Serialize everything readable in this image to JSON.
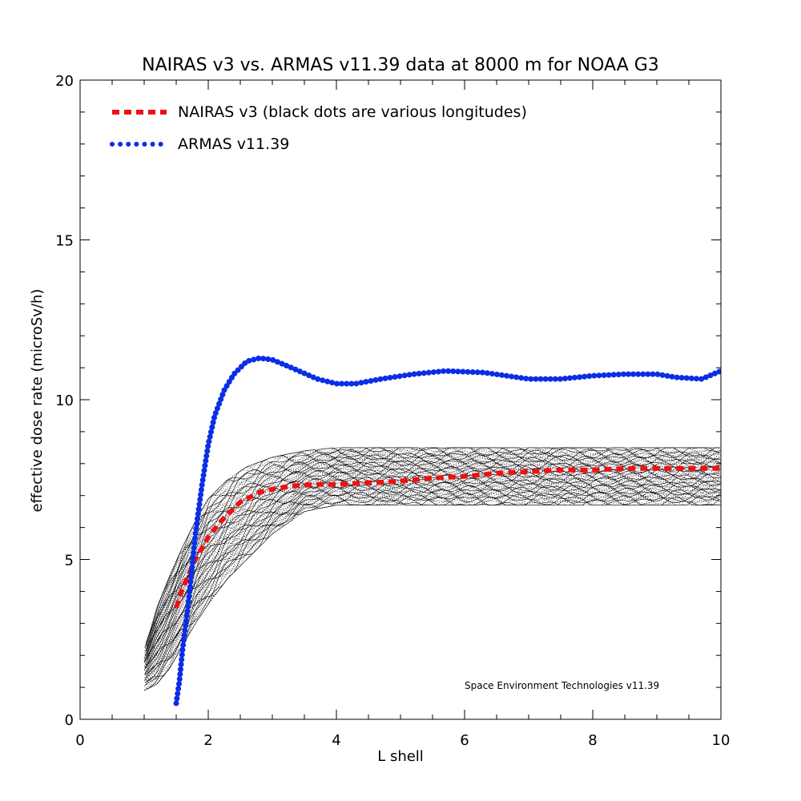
{
  "chart_data": {
    "type": "line",
    "title": "NAIRAS  v3 vs. ARMAS v11.39 data at 8000 m for NOAA G3",
    "xlabel": "L shell",
    "ylabel": "effective dose rate (microSv/h)",
    "xlim": [
      0,
      10
    ],
    "ylim": [
      0,
      20
    ],
    "x_ticks": [
      0,
      2,
      4,
      6,
      8,
      10
    ],
    "x_tick_labels": [
      "0",
      "2",
      "4",
      "6",
      "8",
      "10"
    ],
    "y_ticks": [
      0,
      5,
      10,
      15,
      20
    ],
    "y_tick_labels": [
      "0",
      "5",
      "10",
      "15",
      "20"
    ],
    "grid": false,
    "legend_position": "top-left",
    "annotation": "Space Environment Technologies v11.39",
    "series": [
      {
        "name": "NAIRAS v3 (black dots are various longitudes)",
        "color": "#ee1111",
        "style": "dotted-dashes",
        "points": [
          [
            1.5,
            3.5
          ],
          [
            1.6,
            4.1
          ],
          [
            1.8,
            5.0
          ],
          [
            2.0,
            5.7
          ],
          [
            2.2,
            6.2
          ],
          [
            2.5,
            6.8
          ],
          [
            2.8,
            7.1
          ],
          [
            3.0,
            7.2
          ],
          [
            3.3,
            7.3
          ],
          [
            3.7,
            7.35
          ],
          [
            4.0,
            7.35
          ],
          [
            4.5,
            7.4
          ],
          [
            5.0,
            7.45
          ],
          [
            5.5,
            7.55
          ],
          [
            6.0,
            7.6
          ],
          [
            6.5,
            7.7
          ],
          [
            7.0,
            7.75
          ],
          [
            7.5,
            7.8
          ],
          [
            8.0,
            7.8
          ],
          [
            8.5,
            7.85
          ],
          [
            9.0,
            7.85
          ],
          [
            9.5,
            7.85
          ],
          [
            10.0,
            7.85
          ]
        ]
      },
      {
        "name": "ARMAS v11.39",
        "color": "#0a2ee6",
        "style": "dotted",
        "points": [
          [
            1.5,
            0.5
          ],
          [
            1.55,
            1.2
          ],
          [
            1.6,
            2.2
          ],
          [
            1.7,
            3.8
          ],
          [
            1.8,
            5.8
          ],
          [
            1.9,
            7.3
          ],
          [
            2.0,
            8.6
          ],
          [
            2.1,
            9.5
          ],
          [
            2.25,
            10.3
          ],
          [
            2.4,
            10.8
          ],
          [
            2.6,
            11.2
          ],
          [
            2.8,
            11.3
          ],
          [
            3.0,
            11.25
          ],
          [
            3.3,
            11.0
          ],
          [
            3.7,
            10.65
          ],
          [
            4.0,
            10.5
          ],
          [
            4.3,
            10.5
          ],
          [
            4.7,
            10.65
          ],
          [
            5.2,
            10.8
          ],
          [
            5.7,
            10.9
          ],
          [
            6.3,
            10.85
          ],
          [
            7.0,
            10.65
          ],
          [
            7.5,
            10.65
          ],
          [
            8.0,
            10.75
          ],
          [
            8.5,
            10.8
          ],
          [
            9.0,
            10.8
          ],
          [
            9.3,
            10.7
          ],
          [
            9.7,
            10.65
          ],
          [
            10.0,
            10.9
          ]
        ]
      }
    ],
    "scatter_band": {
      "description_color": "#000000",
      "envelope": [
        {
          "x": 1.0,
          "lo": 0.9,
          "hi": 2.2
        },
        {
          "x": 1.2,
          "lo": 1.1,
          "hi": 3.5
        },
        {
          "x": 1.4,
          "lo": 1.6,
          "hi": 4.5
        },
        {
          "x": 1.6,
          "lo": 2.3,
          "hi": 5.4
        },
        {
          "x": 1.8,
          "lo": 3.0,
          "hi": 6.2
        },
        {
          "x": 2.0,
          "lo": 3.6,
          "hi": 6.9
        },
        {
          "x": 2.3,
          "lo": 4.4,
          "hi": 7.5
        },
        {
          "x": 2.6,
          "lo": 5.0,
          "hi": 7.9
        },
        {
          "x": 3.0,
          "lo": 5.8,
          "hi": 8.2
        },
        {
          "x": 3.5,
          "lo": 6.5,
          "hi": 8.4
        },
        {
          "x": 4.0,
          "lo": 6.7,
          "hi": 8.5
        },
        {
          "x": 5.0,
          "lo": 6.7,
          "hi": 8.5
        },
        {
          "x": 6.0,
          "lo": 6.7,
          "hi": 8.5
        },
        {
          "x": 8.0,
          "lo": 6.7,
          "hi": 8.5
        },
        {
          "x": 10.0,
          "lo": 6.7,
          "hi": 8.5
        }
      ]
    }
  }
}
